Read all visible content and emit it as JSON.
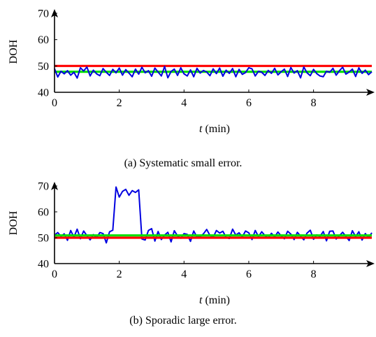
{
  "chart_data": [
    {
      "type": "line",
      "panel_id": "a",
      "caption": "(a) Systematic small error.",
      "xlabel_var": "t",
      "xlabel_unit": "(min)",
      "ylabel": "DOH",
      "xlim": [
        0,
        9.8
      ],
      "ylim": [
        40,
        70
      ],
      "xticks": [
        0,
        2,
        4,
        6,
        8
      ],
      "yticks": [
        40,
        50,
        60,
        70
      ],
      "grid": false,
      "series": [
        {
          "color": "#ff0000",
          "x": [
            0,
            9.8
          ],
          "y": [
            50,
            50
          ]
        },
        {
          "color": "#00e000",
          "x": [
            0,
            9.8
          ],
          "y": [
            47.8,
            47.8
          ]
        },
        {
          "color": "#0000e0",
          "x": [
            0.0,
            0.1,
            0.2,
            0.3,
            0.4,
            0.5,
            0.6,
            0.7,
            0.8,
            0.9,
            1.0,
            1.1,
            1.2,
            1.3,
            1.4,
            1.5,
            1.6,
            1.7,
            1.8,
            1.9,
            2.0,
            2.1,
            2.2,
            2.3,
            2.4,
            2.5,
            2.6,
            2.7,
            2.8,
            2.9,
            3.0,
            3.1,
            3.2,
            3.3,
            3.4,
            3.5,
            3.6,
            3.7,
            3.8,
            3.9,
            4.0,
            4.1,
            4.2,
            4.3,
            4.4,
            4.5,
            4.6,
            4.7,
            4.8,
            4.9,
            5.0,
            5.1,
            5.2,
            5.3,
            5.4,
            5.5,
            5.6,
            5.7,
            5.8,
            5.9,
            6.0,
            6.1,
            6.2,
            6.3,
            6.4,
            6.5,
            6.6,
            6.7,
            6.8,
            6.9,
            7.0,
            7.1,
            7.2,
            7.3,
            7.4,
            7.5,
            7.6,
            7.7,
            7.8,
            7.9,
            8.0,
            8.1,
            8.2,
            8.3,
            8.4,
            8.5,
            8.6,
            8.7,
            8.8,
            8.9,
            9.0,
            9.1,
            9.2,
            9.3,
            9.4,
            9.5,
            9.6,
            9.7,
            9.8
          ],
          "y": [
            49,
            45.8,
            48,
            47,
            48.2,
            46.5,
            47.6,
            45.4,
            49.3,
            48.1,
            49.6,
            46.2,
            48.4,
            47,
            46.3,
            49,
            47.6,
            46.4,
            48.7,
            47.4,
            49.2,
            46.5,
            48.6,
            47.3,
            45.9,
            48.8,
            46.9,
            49.5,
            47.4,
            48.2,
            46.1,
            49.2,
            47.7,
            46.2,
            49.8,
            45.5,
            47.9,
            48.8,
            46.4,
            49.3,
            47,
            46.2,
            48.5,
            45.9,
            49.1,
            47.3,
            48.3,
            47.7,
            46.3,
            48.9,
            47.1,
            49.2,
            46.1,
            48.4,
            47.2,
            49,
            45.9,
            48.7,
            46.8,
            47.5,
            49.3,
            48.9,
            46.2,
            48,
            47.6,
            46.4,
            48.3,
            47.2,
            49.1,
            46.6,
            47.8,
            48.8,
            46,
            49.4,
            47.3,
            48.2,
            45.5,
            49.6,
            47.4,
            46.3,
            48.7,
            47.1,
            46.2,
            45.9,
            48,
            47.6,
            49.1,
            46.5,
            48.2,
            49.5,
            46.9,
            47.7,
            48.8,
            46,
            49.3,
            47.2,
            48.4,
            46.7,
            47.8
          ]
        }
      ]
    },
    {
      "type": "line",
      "panel_id": "b",
      "caption": "(b) Sporadic large error.",
      "xlabel_var": "t",
      "xlabel_unit": "(min)",
      "ylabel": "DOH",
      "xlim": [
        0,
        9.8
      ],
      "ylim": [
        40,
        70
      ],
      "xticks": [
        0,
        2,
        4,
        6,
        8
      ],
      "yticks": [
        40,
        50,
        60,
        70
      ],
      "grid": false,
      "series": [
        {
          "color": "#0000e0",
          "x": [
            0.0,
            0.1,
            0.2,
            0.3,
            0.4,
            0.5,
            0.6,
            0.7,
            0.8,
            0.9,
            1.0,
            1.1,
            1.2,
            1.3,
            1.4,
            1.5,
            1.6,
            1.7,
            1.8,
            1.9,
            2.0,
            2.1,
            2.2,
            2.3,
            2.4,
            2.5,
            2.6,
            2.7,
            2.8,
            2.9,
            3.0,
            3.1,
            3.2,
            3.3,
            3.4,
            3.5,
            3.6,
            3.7,
            3.8,
            3.9,
            4.0,
            4.1,
            4.2,
            4.3,
            4.4,
            4.5,
            4.6,
            4.7,
            4.8,
            4.9,
            5.0,
            5.1,
            5.2,
            5.3,
            5.4,
            5.5,
            5.6,
            5.7,
            5.8,
            5.9,
            6.0,
            6.1,
            6.2,
            6.3,
            6.4,
            6.5,
            6.6,
            6.7,
            6.8,
            6.9,
            7.0,
            7.1,
            7.2,
            7.3,
            7.4,
            7.5,
            7.6,
            7.7,
            7.8,
            7.9,
            8.0,
            8.1,
            8.2,
            8.3,
            8.4,
            8.5,
            8.6,
            8.7,
            8.8,
            8.9,
            9.0,
            9.1,
            9.2,
            9.3,
            9.4,
            9.5,
            9.6,
            9.7,
            9.8
          ],
          "y": [
            51,
            52,
            50.5,
            51.5,
            49,
            52.8,
            50.2,
            53.3,
            49.6,
            52.6,
            50.8,
            49.2,
            51.2,
            50,
            52,
            51.6,
            48,
            52.3,
            52.9,
            69.6,
            65.7,
            67.9,
            68.7,
            66.4,
            68.2,
            67.5,
            68.5,
            49.5,
            49.1,
            52.8,
            53.5,
            48.7,
            52.4,
            49.3,
            51,
            52.1,
            48.4,
            52.7,
            50.7,
            49.8,
            51.6,
            51.3,
            48.6,
            52.6,
            50.2,
            50.4,
            51.5,
            53.2,
            50.9,
            50.1,
            52.8,
            51.8,
            52.5,
            50.1,
            49.7,
            53.3,
            51,
            51.9,
            50.3,
            52.6,
            51.9,
            49.3,
            52.8,
            50.4,
            52.3,
            50.8,
            49.9,
            51.7,
            50.3,
            52.2,
            50.7,
            49.6,
            52.5,
            51.4,
            49.3,
            52.1,
            50.6,
            49.2,
            51.8,
            52.9,
            49.4,
            51.1,
            50.5,
            52.4,
            48.8,
            52.5,
            52.6,
            49.5,
            50.8,
            52.1,
            50.5,
            48.9,
            52.7,
            50.4,
            52.3,
            49.1,
            51.6,
            50,
            51.9
          ]
        },
        {
          "color": "#ff0000",
          "x": [
            0,
            9.8
          ],
          "y": [
            50,
            50
          ]
        },
        {
          "color": "#00e000",
          "x": [
            0,
            9.8
          ],
          "y": [
            50.9,
            50.9
          ]
        }
      ]
    }
  ]
}
